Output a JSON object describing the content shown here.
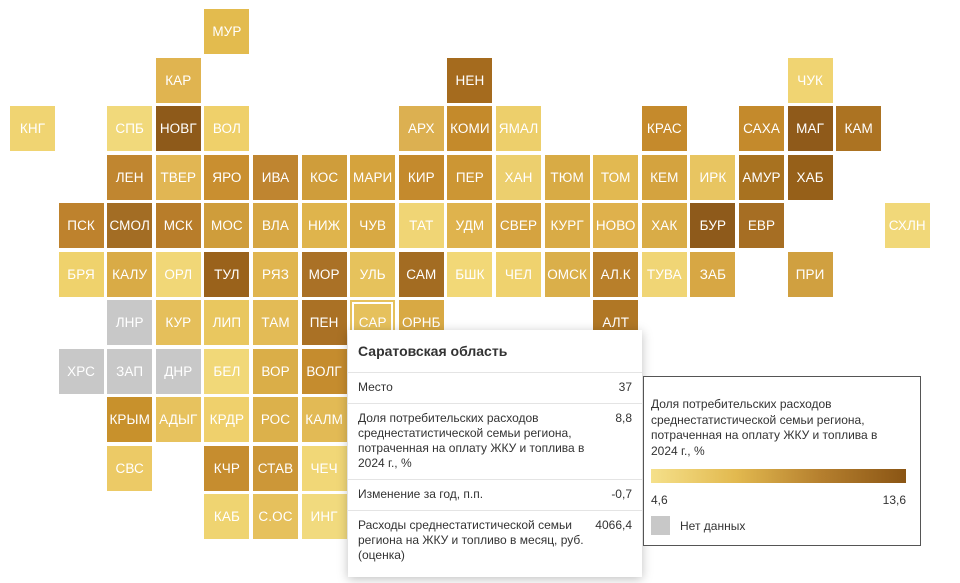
{
  "map": {
    "tiles": [
      {
        "label": "МУР",
        "c": "#e3bb4e"
      },
      {
        "label": "КАР",
        "c": "#e0b450"
      },
      {
        "label": "НЕН",
        "c": "#a56b1e"
      },
      {
        "label": "ЧУК",
        "c": "#f0d472"
      },
      {
        "label": "КНГ",
        "c": "#f0d472"
      },
      {
        "label": "СПБ",
        "c": "#f1d97b"
      },
      {
        "label": "НОВГ",
        "c": "#8e5a1a"
      },
      {
        "label": "ВОЛ",
        "c": "#efd06a"
      },
      {
        "label": "АРХ",
        "c": "#dcb051"
      },
      {
        "label": "КОМИ",
        "c": "#c48a2b"
      },
      {
        "label": "ЯМАЛ",
        "c": "#edcf6b"
      },
      {
        "label": "КРАС",
        "c": "#c58a2c"
      },
      {
        "label": "САХА",
        "c": "#c48a2c"
      },
      {
        "label": "МАГ",
        "c": "#8f5a1a"
      },
      {
        "label": "КАМ",
        "c": "#ac7322"
      },
      {
        "label": "ЛЕН",
        "c": "#c08630"
      },
      {
        "label": "ТВЕР",
        "c": "#e1b653"
      },
      {
        "label": "ЯРО",
        "c": "#c98f30"
      },
      {
        "label": "ИВА",
        "c": "#bf8530"
      },
      {
        "label": "КОС",
        "c": "#cf9d3b"
      },
      {
        "label": "МАРИ",
        "c": "#d5a33d"
      },
      {
        "label": "КИР",
        "c": "#c48a2d"
      },
      {
        "label": "ПЕР",
        "c": "#cc9634"
      },
      {
        "label": "ХАН",
        "c": "#eccf6e"
      },
      {
        "label": "ТЮМ",
        "c": "#d8ab45"
      },
      {
        "label": "ТОМ",
        "c": "#e2b951"
      },
      {
        "label": "КЕМ",
        "c": "#d4a33f"
      },
      {
        "label": "ИРК",
        "c": "#e8c561"
      },
      {
        "label": "АМУР",
        "c": "#a87220"
      },
      {
        "label": "ХАБ",
        "c": "#966019"
      },
      {
        "label": "ПСК",
        "c": "#be822d"
      },
      {
        "label": "СМОЛ",
        "c": "#a36d24"
      },
      {
        "label": "МСК",
        "c": "#b87d2a"
      },
      {
        "label": "МОС",
        "c": "#cf9d3b"
      },
      {
        "label": "ВЛА",
        "c": "#d6a643"
      },
      {
        "label": "НИЖ",
        "c": "#dfb44c"
      },
      {
        "label": "ЧУВ",
        "c": "#d8a943"
      },
      {
        "label": "ТАТ",
        "c": "#f0d575"
      },
      {
        "label": "УДМ",
        "c": "#dfb34d"
      },
      {
        "label": "СВЕР",
        "c": "#d5a340"
      },
      {
        "label": "КУРГ",
        "c": "#d9ab46"
      },
      {
        "label": "НОВО",
        "c": "#dfb14c"
      },
      {
        "label": "ХАК",
        "c": "#d9ac47"
      },
      {
        "label": "БУР",
        "c": "#8e5a1b"
      },
      {
        "label": "ЕВР",
        "c": "#a66e23"
      },
      {
        "label": "СХЛН",
        "c": "#f1d879"
      },
      {
        "label": "БРЯ",
        "c": "#efd26c"
      },
      {
        "label": "КАЛУ",
        "c": "#d9ab46"
      },
      {
        "label": "ОРЛ",
        "c": "#f1d777"
      },
      {
        "label": "ТУЛ",
        "c": "#9a621b"
      },
      {
        "label": "РЯЗ",
        "c": "#e0b54f"
      },
      {
        "label": "МОР",
        "c": "#aa7126"
      },
      {
        "label": "УЛЬ",
        "c": "#e6c25c"
      },
      {
        "label": "САМ",
        "c": "#a36c22"
      },
      {
        "label": "БШК",
        "c": "#f2d877"
      },
      {
        "label": "ЧЕЛ",
        "c": "#efd26e"
      },
      {
        "label": "ОМСК",
        "c": "#daaf4a"
      },
      {
        "label": "АЛ.К",
        "c": "#b87f2a"
      },
      {
        "label": "ТУВА",
        "c": "#f0d575"
      },
      {
        "label": "ЗАБ",
        "c": "#d7a744"
      },
      {
        "label": "ПРИ",
        "c": "#d0a040"
      },
      {
        "label": "ЛНР",
        "c": "#c8c8c8"
      },
      {
        "label": "КУР",
        "c": "#e5bf5b"
      },
      {
        "label": "ЛИП",
        "c": "#e9c75f"
      },
      {
        "label": "ТАМ",
        "c": "#e3bb56"
      },
      {
        "label": "ПЕН",
        "c": "#aa7125"
      },
      {
        "label": "САР",
        "c": "#e6c15c"
      },
      {
        "label": "ОРНБ",
        "c": "#d8a944"
      },
      {
        "label": "АЛТ",
        "c": "#b07725"
      },
      {
        "label": "ХРС",
        "c": "#c8c8c8"
      },
      {
        "label": "ЗАП",
        "c": "#c8c8c8"
      },
      {
        "label": "ДНР",
        "c": "#c8c8c8"
      },
      {
        "label": "БЕЛ",
        "c": "#f1d878"
      },
      {
        "label": "ВОР",
        "c": "#daae48"
      },
      {
        "label": "ВОЛГ",
        "c": "#c58c2e"
      },
      {
        "label": "КРЫМ",
        "c": "#c8912c"
      },
      {
        "label": "АДЫГ",
        "c": "#e7c25e"
      },
      {
        "label": "КРДР",
        "c": "#efd06c"
      },
      {
        "label": "РОС",
        "c": "#dcb14b"
      },
      {
        "label": "КАЛМ",
        "c": "#e2ba55"
      },
      {
        "label": "СВС",
        "c": "#ecca66"
      },
      {
        "label": "КЧР",
        "c": "#c68d2f"
      },
      {
        "label": "СТАВ",
        "c": "#cc9738"
      },
      {
        "label": "ЧЕЧ",
        "c": "#f1d777"
      },
      {
        "label": "КАБ",
        "c": "#efd471"
      },
      {
        "label": "С.ОС",
        "c": "#e6c15d"
      },
      {
        "label": "ИНГ",
        "c": "#f1da7e"
      }
    ]
  },
  "tooltip": {
    "title": "Саратовская область",
    "rows": [
      {
        "label": "Место",
        "value": "37"
      },
      {
        "label": "Доля потребительских расходов среднестатистической семьи региона, потраченная на оплату ЖКУ и топлива в 2024 г., %",
        "value": "8,8"
      },
      {
        "label": "Изменение за год, п.п.",
        "value": "-0,7"
      },
      {
        "label": "Расходы среднестатистической семьи региона на ЖКУ и топливо в месяц, руб. (оценка)",
        "value": "4066,4"
      }
    ]
  },
  "legend": {
    "title": "Доля потребительских расходов среднестатистической семьи региона, потраченная на оплату ЖКУ и топлива в 2024 г., %",
    "min": "4,6",
    "max": "13,6",
    "nodata": "Нет данных",
    "colors": {
      "nodata": "#c8c8c8",
      "low": "#f5e08a",
      "high": "#8a5514"
    }
  }
}
